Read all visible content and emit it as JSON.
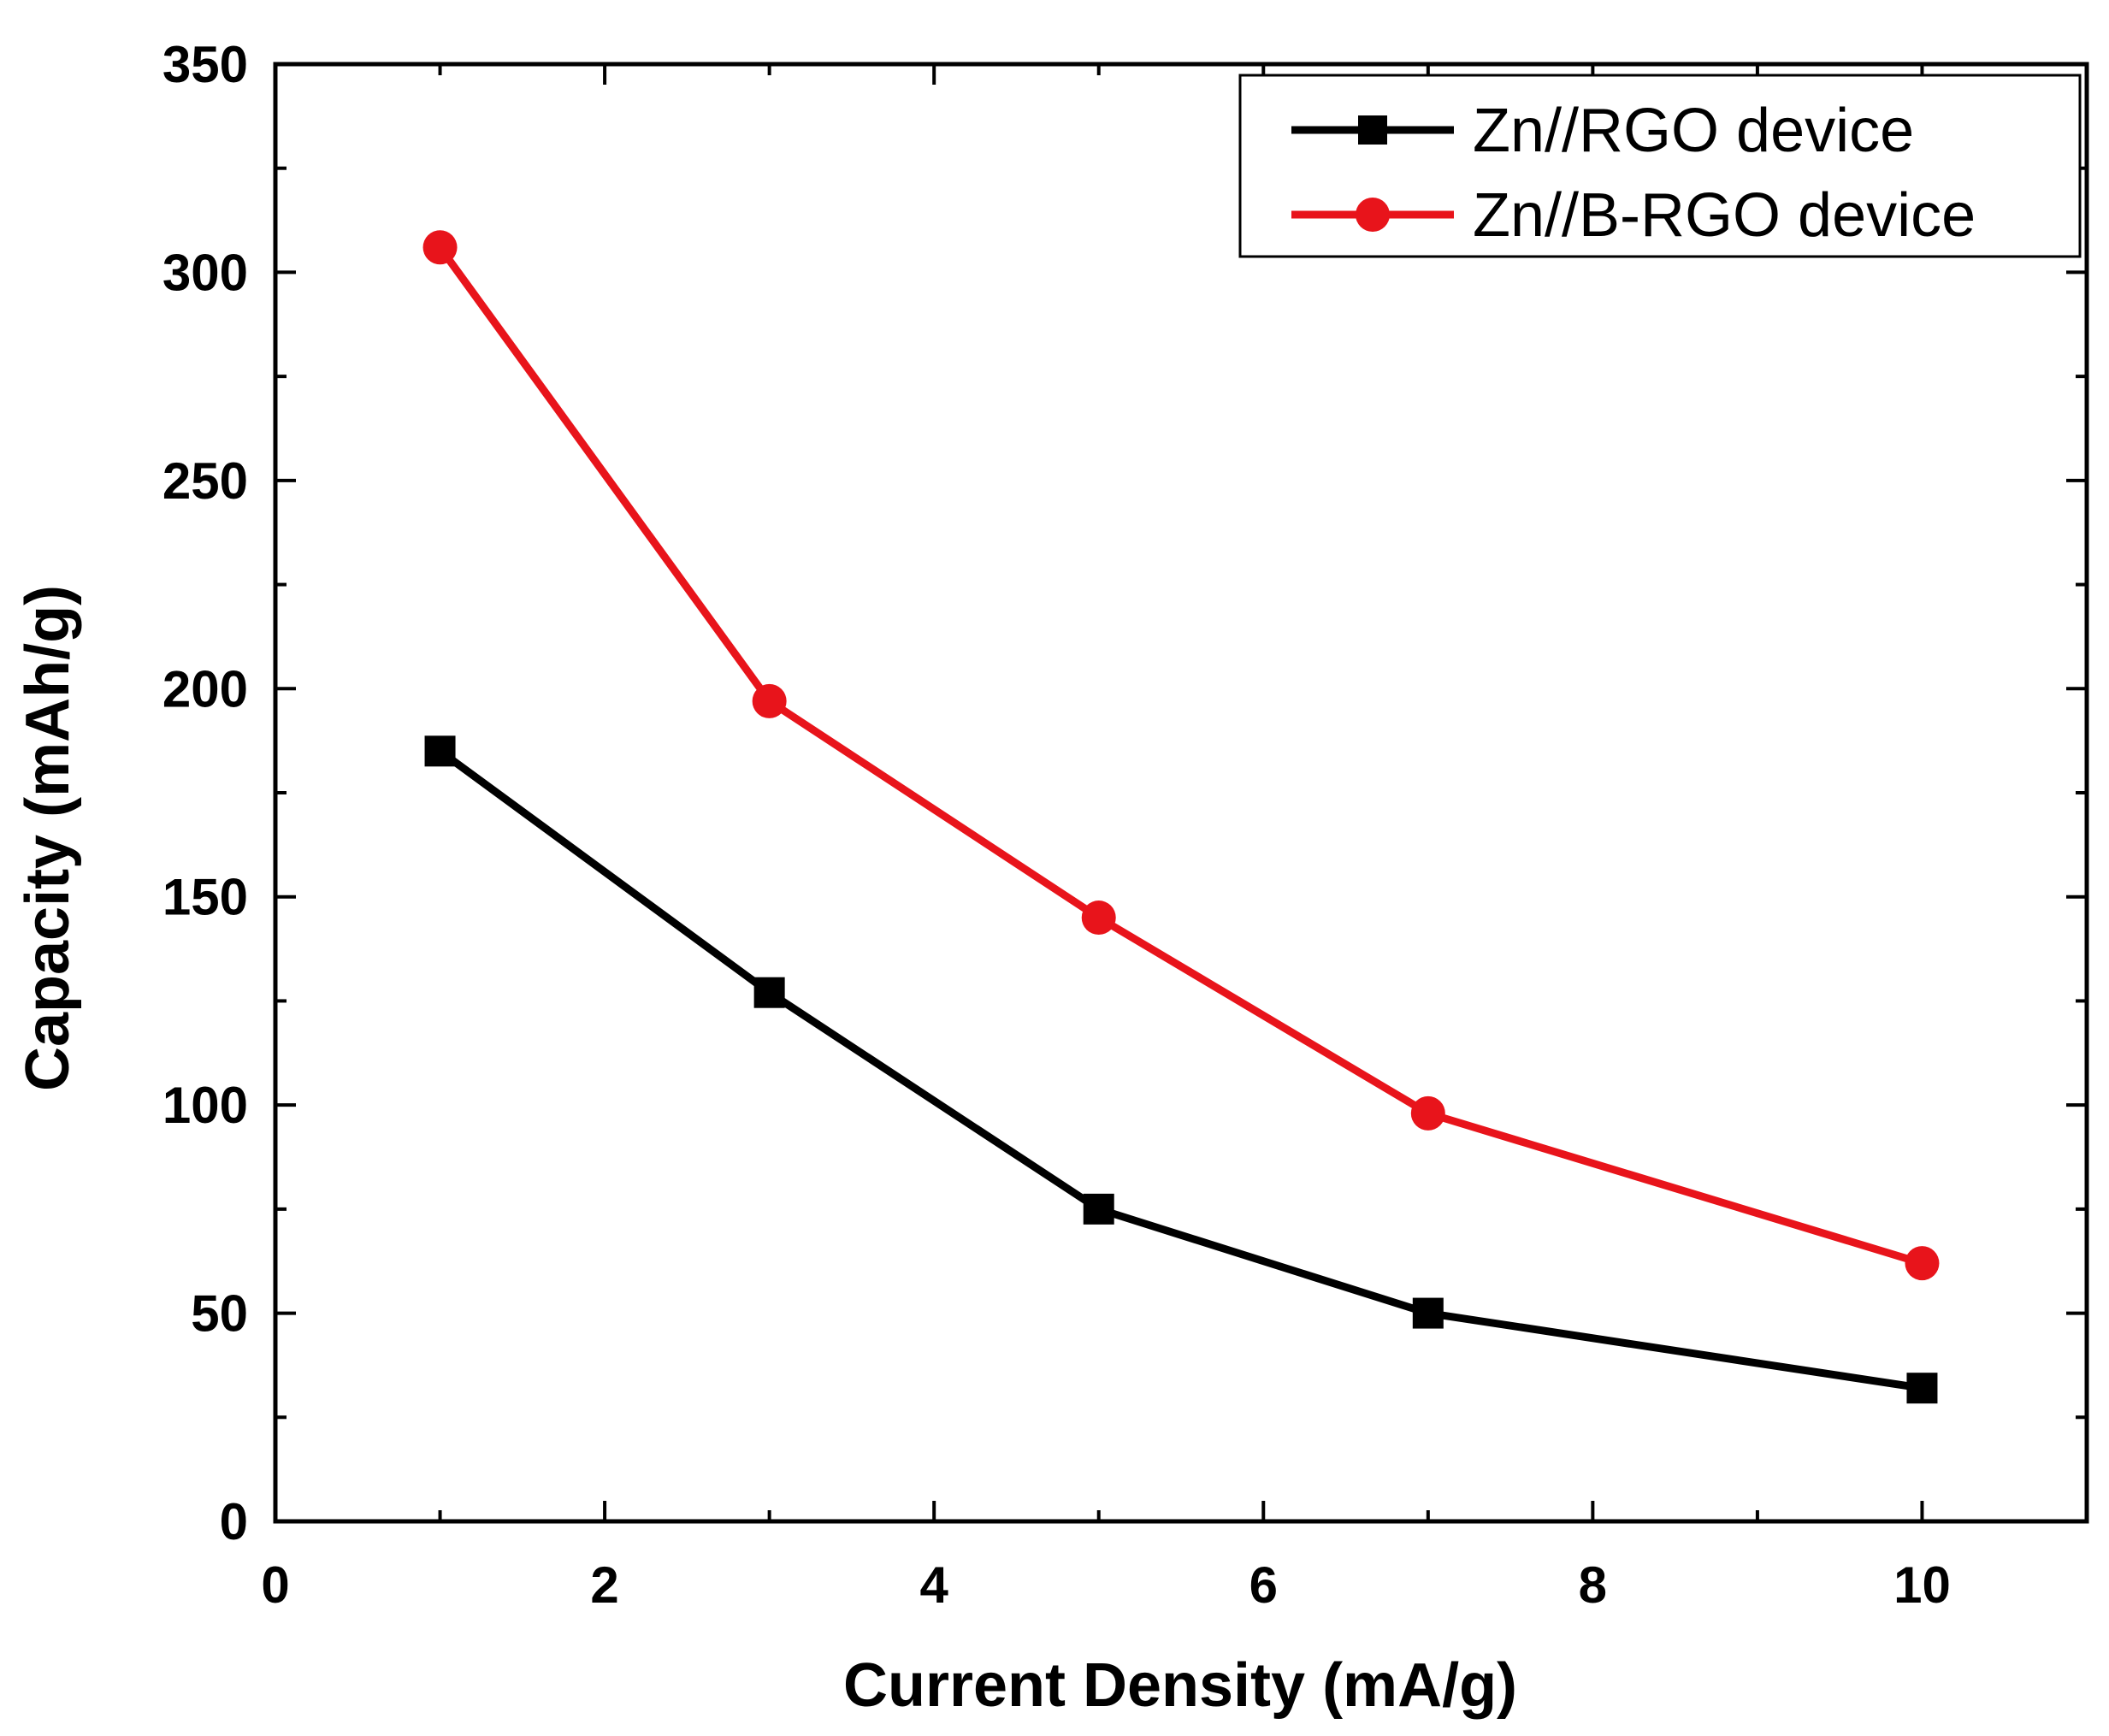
{
  "chart_data": {
    "type": "line",
    "title": "",
    "xlabel": "Current Density (mA/g)",
    "ylabel": "Capacity (mAh/g)",
    "xlim": [
      0,
      11
    ],
    "ylim": [
      0,
      350
    ],
    "xticks": [
      0,
      2,
      4,
      6,
      8,
      10
    ],
    "yticks": [
      0,
      50,
      100,
      150,
      200,
      250,
      300,
      350
    ],
    "xtick_labels": [
      "0",
      "2",
      "4",
      "6",
      "8",
      "10"
    ],
    "ytick_labels": [
      "0",
      "50",
      "100",
      "150",
      "200",
      "250",
      "300",
      "350"
    ],
    "grid": false,
    "legend_position": "top-right",
    "series": [
      {
        "name": "Zn//RGO device",
        "color": "#000000",
        "marker": "square",
        "x": [
          1,
          3,
          5,
          7,
          10
        ],
        "y": [
          185,
          127,
          75,
          50,
          32
        ]
      },
      {
        "name": "Zn//B-RGO device",
        "color": "#e8141b",
        "marker": "circle",
        "x": [
          1,
          3,
          5,
          7,
          10
        ],
        "y": [
          306,
          197,
          145,
          98,
          62
        ]
      }
    ]
  }
}
